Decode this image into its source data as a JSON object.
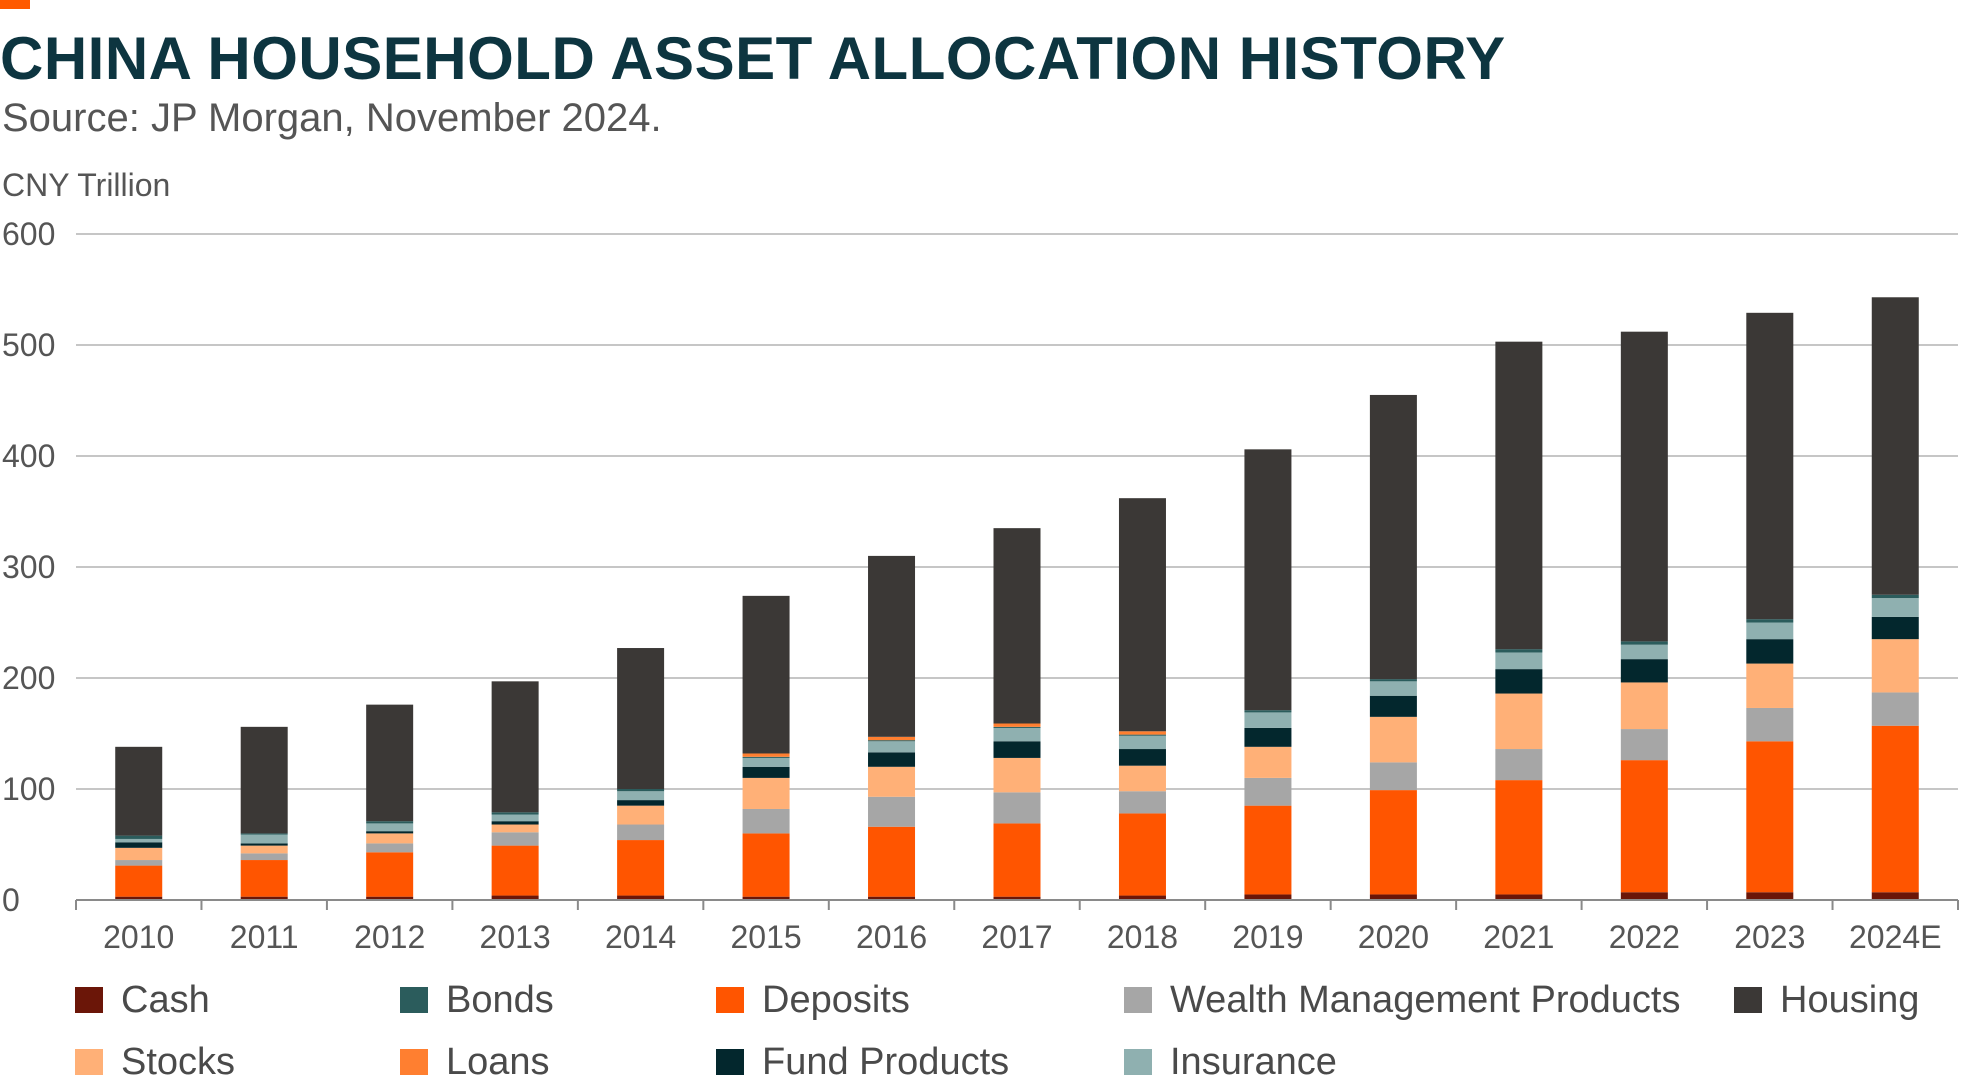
{
  "header": {
    "title": "CHINA HOUSEHOLD ASSET ALLOCATION HISTORY",
    "subtitle": "Source: JP Morgan, November 2024.",
    "title_color": "#0d3540",
    "accent_color": "#ff5a00"
  },
  "chart_data": {
    "type": "bar",
    "stacked": true,
    "ylabel": "CNY Trillion",
    "ylim": [
      0,
      600
    ],
    "yticks": [
      "0",
      "100",
      "200",
      "300",
      "400",
      "500",
      "600"
    ],
    "grid": true,
    "legend_position": "bottom",
    "categories": [
      "2010",
      "2011",
      "2012",
      "2013",
      "2014",
      "2015",
      "2016",
      "2017",
      "2018",
      "2019",
      "2020",
      "2021",
      "2022",
      "2023",
      "2024E"
    ],
    "series": [
      {
        "name": "Cash",
        "color": "#6b1608",
        "values": [
          3,
          3,
          3,
          4,
          4,
          3,
          3,
          3,
          4,
          5,
          5,
          5,
          7,
          7,
          7
        ]
      },
      {
        "name": "Deposits",
        "color": "#ff5500",
        "values": [
          28,
          33,
          40,
          45,
          50,
          57,
          63,
          66,
          74,
          80,
          94,
          103,
          119,
          136,
          150
        ]
      },
      {
        "name": "Wealth Management Products",
        "color": "#a6a6a6",
        "values": [
          5,
          6,
          8,
          12,
          14,
          22,
          27,
          28,
          20,
          25,
          25,
          28,
          28,
          30,
          30
        ]
      },
      {
        "name": "Stocks",
        "color": "#ffb077",
        "values": [
          11,
          7,
          9,
          7,
          17,
          28,
          27,
          31,
          23,
          28,
          41,
          50,
          42,
          40,
          48
        ]
      },
      {
        "name": "Fund Products",
        "color": "#03272d",
        "values": [
          5,
          2,
          2,
          3,
          5,
          10,
          13,
          15,
          15,
          17,
          19,
          22,
          21,
          22,
          20
        ]
      },
      {
        "name": "Insurance",
        "color": "#8fb0b0",
        "values": [
          3,
          8,
          7,
          6,
          8,
          8,
          10,
          12,
          12,
          14,
          13,
          15,
          13,
          15,
          17
        ]
      },
      {
        "name": "Bonds",
        "color": "#2b5c5c",
        "values": [
          3,
          1,
          2,
          2,
          2,
          1,
          1,
          1,
          1,
          2,
          2,
          3,
          3,
          3,
          3
        ]
      },
      {
        "name": "Loans",
        "color": "#ff7f30",
        "values": [
          0,
          0,
          0,
          0,
          0,
          3,
          3,
          3,
          3,
          0,
          0,
          0,
          0,
          0,
          0
        ]
      },
      {
        "name": "Housing",
        "color": "#3b3836",
        "values": [
          80,
          96,
          105,
          118,
          127,
          142,
          163,
          176,
          210,
          235,
          256,
          277,
          279,
          276,
          268
        ]
      }
    ]
  },
  "legend": [
    {
      "label": "Cash",
      "color": "#6b1608"
    },
    {
      "label": "Bonds",
      "color": "#2b5c5c"
    },
    {
      "label": "Deposits",
      "color": "#ff5500"
    },
    {
      "label": "Wealth Management Products",
      "color": "#a6a6a6"
    },
    {
      "label": "Housing",
      "color": "#3b3836"
    },
    {
      "label": "Stocks",
      "color": "#ffb077"
    },
    {
      "label": "Loans",
      "color": "#ff7f30"
    },
    {
      "label": "Fund Products",
      "color": "#03272d"
    },
    {
      "label": "Insurance",
      "color": "#8fb0b0"
    }
  ]
}
